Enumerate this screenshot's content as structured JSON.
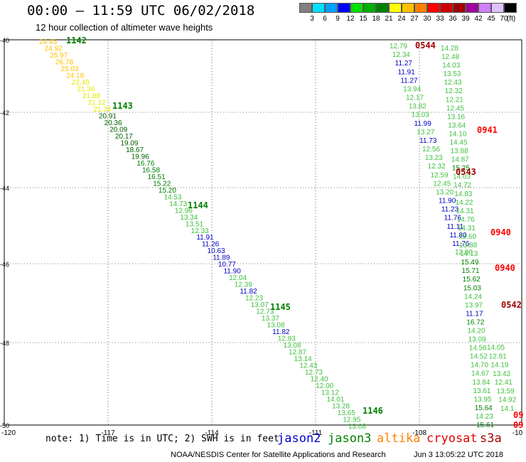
{
  "title": "00:00 – 11:59 UTC 06/02/2018",
  "subtitle": "12 hour collection of altimeter wave heights",
  "colorbar": {
    "unit": "(ft)",
    "labels": [
      "3",
      "6",
      "9",
      "12",
      "15",
      "18",
      "21",
      "24",
      "27",
      "30",
      "33",
      "36",
      "39",
      "42",
      "45",
      "70"
    ],
    "colors": [
      "#808080",
      "#00e0ff",
      "#00a0ff",
      "#0000ff",
      "#00e000",
      "#00b000",
      "#008000",
      "#ffff00",
      "#ffc000",
      "#ff8000",
      "#ff0000",
      "#d00000",
      "#a00000",
      "#a000a0",
      "#d080ff",
      "#e0c0ff",
      "#000000"
    ]
  },
  "map": {
    "x_ticks": [
      "-120",
      "-117",
      "-114",
      "-111",
      "-108",
      "-10"
    ],
    "y_ticks": [
      "-40",
      "-42",
      "-44",
      "-46",
      "-48",
      "-50"
    ]
  },
  "tracks": [
    {
      "pass": "1142",
      "color": "#008000"
    },
    {
      "pass": "1143",
      "color": "#008000"
    },
    {
      "pass": "1144",
      "color": "#008000"
    },
    {
      "pass": "1145",
      "color": "#008000"
    },
    {
      "pass": "1146",
      "color": "#008000"
    },
    {
      "pass": "0544",
      "color": "#a00000"
    },
    {
      "pass": "0941",
      "color": "#ff0000"
    },
    {
      "pass": "0543",
      "color": "#a00000"
    },
    {
      "pass": "0940",
      "color": "#ff0000"
    },
    {
      "pass": "0940",
      "color": "#ff0000"
    },
    {
      "pass": "0542",
      "color": "#a00000"
    },
    {
      "pass": "09",
      "color": "#ff0000"
    },
    {
      "pass": "09",
      "color": "#ff0000"
    }
  ],
  "west_track_values": [
    "24.45",
    "24.92",
    "25.97",
    "26.78",
    "25.03",
    "24.18",
    "22.40",
    "21.36",
    "21.88",
    "21.12",
    "21.34",
    "20.91",
    "20.36",
    "20.09",
    "20.17",
    "19.09",
    "18.67",
    "19.96",
    "16.76",
    "16.58",
    "16.51",
    "15.22",
    "15.20",
    "14.53",
    "14.73",
    "12.96",
    "13.34",
    "13.51",
    "12.33",
    "11.91",
    "11.26",
    "10.63",
    "11.89",
    "10.77",
    "11.90",
    "12.04",
    "12.39",
    "11.82",
    "12.23",
    "13.07",
    "12.73",
    "13.37",
    "13.08",
    "11.82",
    "12.93",
    "13.08",
    "12.87",
    "13.14",
    "12.43",
    "12.73",
    "12.40",
    "12.00",
    "13.12",
    "14.01",
    "13.28",
    "13.65",
    "12.95",
    "13.08"
  ],
  "east_track_a_values": [
    "12.79",
    "12.34",
    "11.27",
    "11.91",
    "11.27",
    "13.94",
    "12.17",
    "13.82",
    "13.03",
    "11.99",
    "13.27",
    "11.73",
    "12.56",
    "13.23",
    "12.32",
    "12.59",
    "12.45",
    "13.20",
    "11.90",
    "11.23",
    "11.76",
    "11.11",
    "11.80",
    "11.76",
    "12.00"
  ],
  "east_track_b_values": [
    "14.28",
    "12.48",
    "14.03",
    "13.53",
    "12.43",
    "12.32",
    "12.21",
    "12.45",
    "13.16",
    "13.64",
    "14.10",
    "14.45",
    "13.88",
    "14.87",
    "15.25",
    "14.03",
    "14.72",
    "14.83",
    "14.22",
    "14.31",
    "14.76",
    "14.31",
    "13.60",
    "13.88",
    "14.13",
    "15.49",
    "15.71",
    "15.62",
    "15.03",
    "14.24",
    "13.97",
    "11.17",
    "16.72",
    "14.20",
    "13.09",
    "14.56",
    "14.52",
    "14.70",
    "14.67",
    "13.84",
    "13.61",
    "13.95",
    "15.64",
    "14.23",
    "15.61"
  ],
  "east_track_c_values": [
    "14.05",
    "12.91",
    "14.19",
    "13.42",
    "12.41",
    "13.59",
    "14.92",
    "14.1"
  ],
  "footer": {
    "note": "note: 1) Time is in UTC; 2) SWH is in feet",
    "legend": [
      {
        "label": "jason2",
        "color": "#0000d0"
      },
      {
        "label": "jason3",
        "color": "#008000"
      },
      {
        "label": "altika",
        "color": "#ff8000"
      },
      {
        "label": "cryosat",
        "color": "#e00000"
      },
      {
        "label": "s3a",
        "color": "#a00000"
      }
    ],
    "credit": "NOAA/NESDIS Center for Satellite Applications and Research",
    "stamp": "Jun  3 13:05:22 UTC 2018"
  }
}
